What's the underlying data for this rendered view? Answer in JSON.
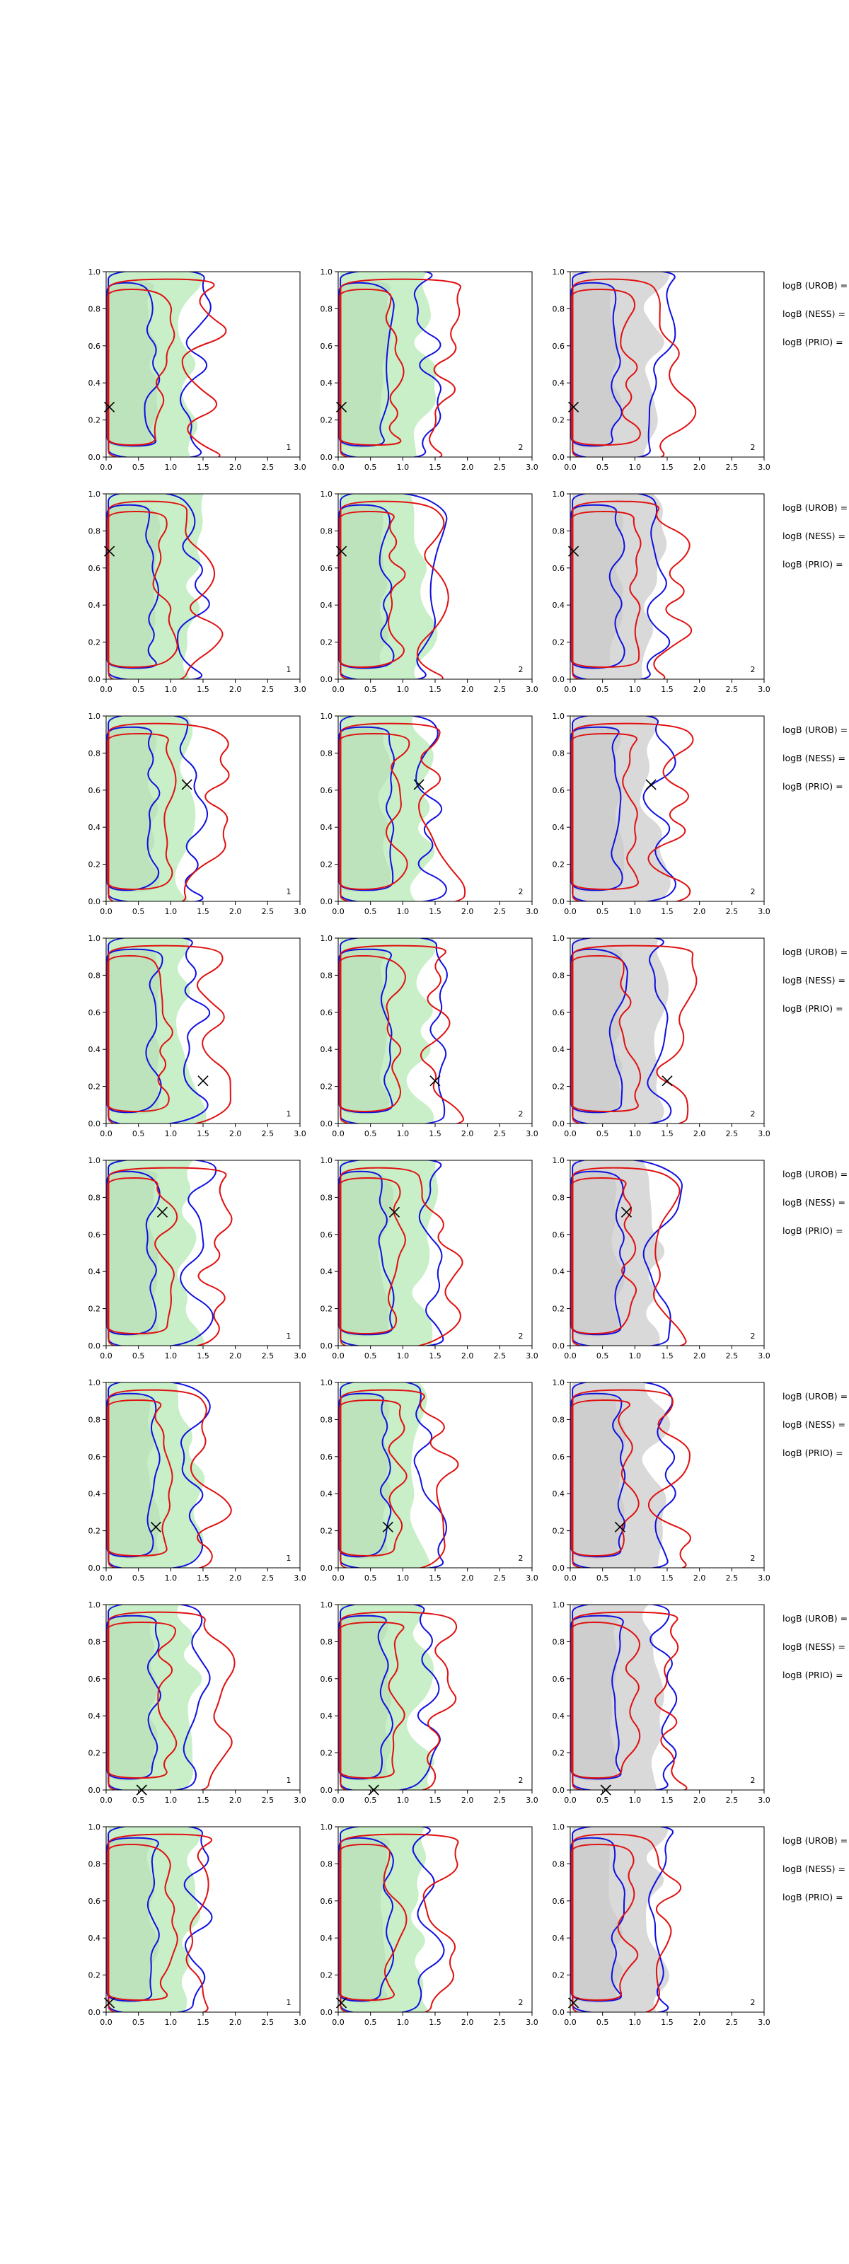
{
  "figure": {
    "x_ticks": [
      "0.0",
      "0.5",
      "1.0",
      "1.5",
      "2.0",
      "2.5",
      "3.0"
    ],
    "y_ticks": [
      "0.0",
      "0.2",
      "0.4",
      "0.6",
      "0.8",
      "1.0"
    ],
    "side_labels": [
      "logB (UROB) =",
      "logB (NESS) =",
      "logB (PRIO) ="
    ],
    "corner_labels": [
      "1",
      "2",
      "2"
    ],
    "colors": {
      "green_fill": "#c8efc8",
      "grey_fill": "#d9d9d9",
      "blue_line": "#1010e0",
      "red_line": "#e01010",
      "marker": "#000000"
    }
  },
  "chart_data": {
    "type": "contour",
    "xlim": [
      0,
      3
    ],
    "ylim": [
      0,
      1
    ],
    "grid": false,
    "legend": "none",
    "rows": [
      {
        "marker": [
          0.05,
          0.27
        ]
      },
      {
        "marker": [
          0.05,
          0.69
        ]
      },
      {
        "marker": [
          1.25,
          0.63
        ]
      },
      {
        "marker": [
          1.5,
          0.23
        ]
      },
      {
        "marker": [
          0.87,
          0.72
        ]
      },
      {
        "marker": [
          0.77,
          0.22
        ]
      },
      {
        "marker": [
          0.55,
          0.0
        ]
      },
      {
        "marker": [
          0.05,
          0.05
        ]
      }
    ],
    "panel_fills": [
      "green",
      "green",
      "grey"
    ]
  }
}
